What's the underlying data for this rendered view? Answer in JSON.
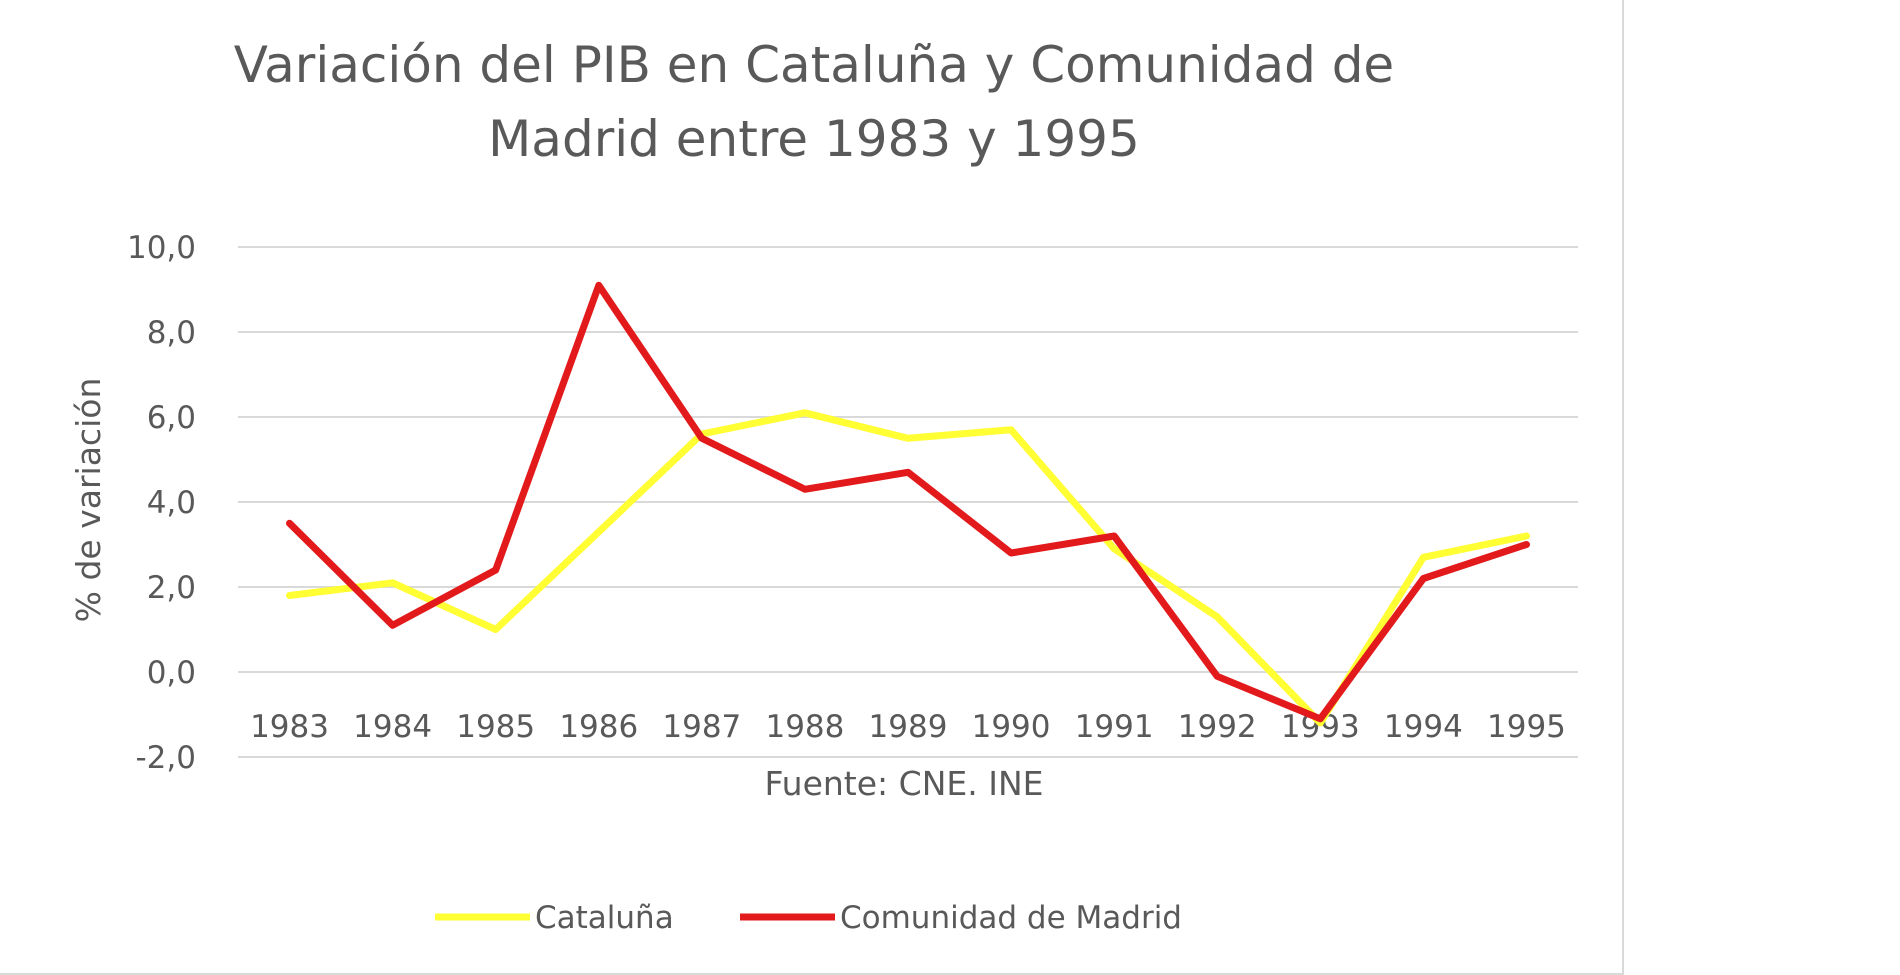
{
  "chart_data": {
    "type": "line",
    "title_line1": "Variación del PIB en Cataluña y Comunidad de",
    "title_line2": "Madrid entre 1983 y 1995",
    "xlabel": "Fuente: CNE. INE",
    "ylabel": "% de variación",
    "ylim": [
      -2,
      10
    ],
    "yticks": [
      "-2,0",
      "0,0",
      "2,0",
      "4,0",
      "6,0",
      "8,0",
      "10,0"
    ],
    "ytick_values": [
      -2,
      0,
      2,
      4,
      6,
      8,
      10
    ],
    "categories": [
      "1983",
      "1984",
      "1985",
      "1986",
      "1987",
      "1988",
      "1989",
      "1990",
      "1991",
      "1992",
      "1993",
      "1994",
      "1995"
    ],
    "grid": true,
    "legend_position": "bottom",
    "series": [
      {
        "name": "Cataluña",
        "color": "#ffff33",
        "values": [
          1.8,
          2.1,
          1.0,
          3.3,
          5.6,
          6.1,
          5.5,
          5.7,
          2.9,
          1.3,
          -1.2,
          2.7,
          3.2
        ]
      },
      {
        "name": "Comunidad de Madrid",
        "color": "#e31a1c",
        "values": [
          3.5,
          1.1,
          2.4,
          9.1,
          5.5,
          4.3,
          4.7,
          2.8,
          3.2,
          -0.1,
          -1.1,
          2.2,
          3.0
        ]
      }
    ]
  }
}
